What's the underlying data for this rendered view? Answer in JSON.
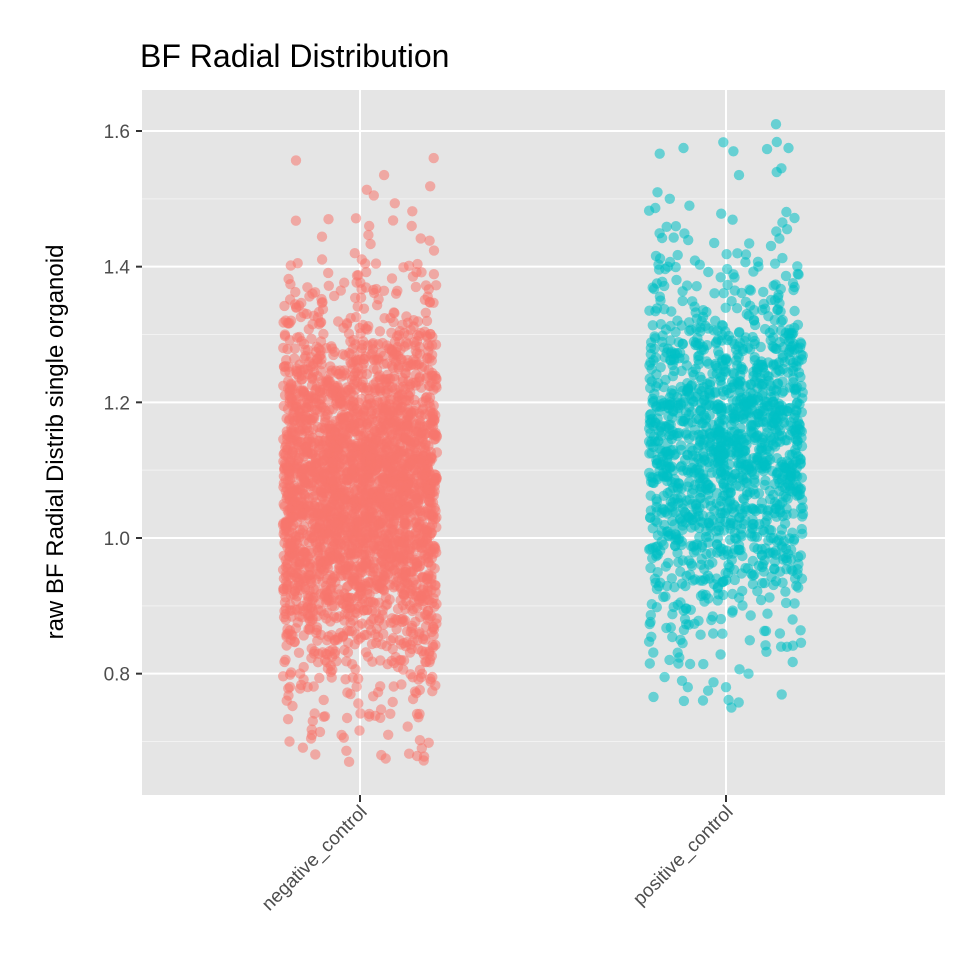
{
  "chart_data": {
    "type": "scatter",
    "subtype": "jitter strip plot",
    "title": "BF Radial Distribution",
    "xlabel": "",
    "ylabel": "raw BF Radial Distrib single organoid",
    "categories": [
      "negative_control",
      "positive_control"
    ],
    "ylim": [
      0.62,
      1.66
    ],
    "yticks": [
      0.8,
      1.0,
      1.2,
      1.4,
      1.6
    ],
    "ytick_labels": [
      "0.8",
      "1.0",
      "1.2",
      "1.4",
      "1.6"
    ],
    "grid": true,
    "legend": "none",
    "background": "#e5e5e5",
    "series": [
      {
        "category": "negative_control",
        "color": "#f8766d",
        "approx_count": 3000,
        "bulk_range": [
          0.78,
          1.35
        ],
        "min": 0.67,
        "max": 1.56,
        "visible_outliers": [
          1.56,
          1.535,
          1.505,
          1.46,
          1.47,
          0.735,
          0.73,
          0.7,
          0.69,
          0.68,
          0.675,
          0.67
        ]
      },
      {
        "category": "positive_control",
        "color": "#00bfc4",
        "approx_count": 1500,
        "bulk_range": [
          0.85,
          1.42
        ],
        "min": 0.75,
        "max": 1.61,
        "visible_outliers": [
          1.61,
          1.575,
          1.575,
          1.57,
          1.545,
          1.535,
          1.5,
          0.8,
          0.795,
          0.78,
          0.78,
          0.75
        ]
      }
    ]
  }
}
